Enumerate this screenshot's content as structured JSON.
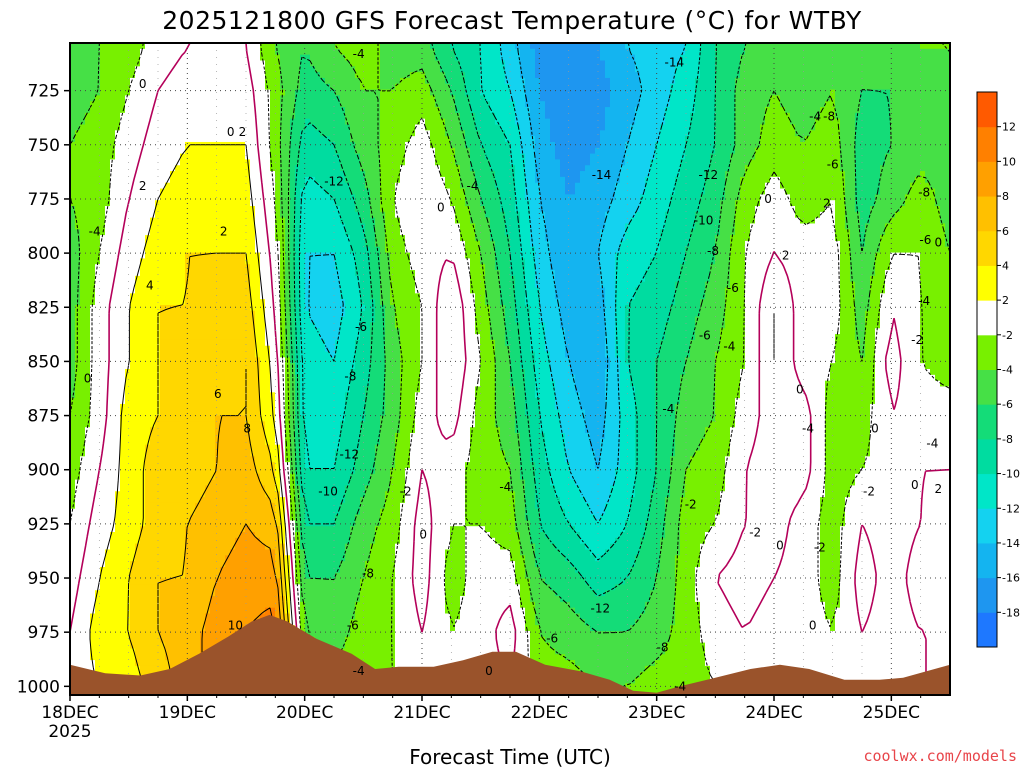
{
  "chart_data": {
    "type": "heatmap",
    "title": "2025121800 GFS Forecast Temperature (°C) for WTBY",
    "xlabel": "Forecast Time (UTC)",
    "ylabel": "",
    "y_unit": "hPa",
    "y_ticks": [
      725,
      750,
      775,
      800,
      825,
      850,
      875,
      900,
      925,
      950,
      975,
      1000
    ],
    "ylim": [
      1004,
      703
    ],
    "x_ticks": [
      "18DEC",
      "19DEC",
      "20DEC",
      "21DEC",
      "22DEC",
      "23DEC",
      "24DEC",
      "25DEC"
    ],
    "x_year": "2025",
    "xlim_days": [
      18,
      25.5
    ],
    "grid": true,
    "colorbar": {
      "bounds": [
        -20,
        -18,
        -16,
        -14,
        -12,
        -10,
        -8,
        -6,
        -4,
        -2,
        2,
        4,
        6,
        8,
        10,
        12,
        14
      ],
      "tick_labels": [
        "-18",
        "-16",
        "-14",
        "-12",
        "-10",
        "-8",
        "-6",
        "-4",
        "-2",
        "2",
        "4",
        "6",
        "8",
        "10",
        "12"
      ],
      "colors": [
        "#1e78ff",
        "#1e96f0",
        "#14b4f0",
        "#14d2f0",
        "#00e6c8",
        "#00dca0",
        "#14dc78",
        "#46e046",
        "#78f000",
        "#ffffff",
        "#ffff00",
        "#ffd700",
        "#ffc000",
        "#ffa000",
        "#ff8000",
        "#ff5a00"
      ]
    },
    "terrain": {
      "color": "#9a532b",
      "surface_pressure": [
        [
          18.0,
          990
        ],
        [
          18.3,
          994
        ],
        [
          18.6,
          995
        ],
        [
          18.85,
          992
        ],
        [
          19.1,
          985
        ],
        [
          19.35,
          977
        ],
        [
          19.55,
          970
        ],
        [
          19.7,
          967
        ],
        [
          19.85,
          970
        ],
        [
          20.1,
          978
        ],
        [
          20.4,
          985
        ],
        [
          20.6,
          992
        ],
        [
          20.8,
          991
        ],
        [
          21.1,
          991
        ],
        [
          21.35,
          988
        ],
        [
          21.6,
          984
        ],
        [
          21.8,
          984
        ],
        [
          22.05,
          990
        ],
        [
          22.35,
          993
        ],
        [
          22.6,
          997
        ],
        [
          22.8,
          1002
        ],
        [
          23.0,
          1003
        ],
        [
          23.2,
          1000
        ],
        [
          23.5,
          996
        ],
        [
          23.8,
          992
        ],
        [
          24.05,
          990
        ],
        [
          24.3,
          992
        ],
        [
          24.6,
          997
        ],
        [
          24.9,
          997
        ],
        [
          25.1,
          996
        ],
        [
          25.3,
          993
        ],
        [
          25.5,
          990
        ]
      ]
    },
    "grid_times_days": [
      18.0,
      18.25,
      18.5,
      18.75,
      19.0,
      19.25,
      19.5,
      19.75,
      20.0,
      20.25,
      20.5,
      20.75,
      21.0,
      21.25,
      21.5,
      21.75,
      22.0,
      22.25,
      22.5,
      22.75,
      23.0,
      23.25,
      23.5,
      23.75,
      24.0,
      24.25,
      24.5,
      24.75,
      25.0,
      25.25,
      25.5
    ],
    "grid_pressure_hpa": [
      1000,
      975,
      950,
      925,
      900,
      875,
      850,
      825,
      800,
      775,
      750,
      725,
      705
    ],
    "temperature_c_by_time": [
      [
        1,
        0,
        -1,
        -2,
        -3,
        -4,
        -5,
        -5,
        -5,
        -4,
        -4,
        -5,
        -5
      ],
      [
        2,
        3,
        2,
        1,
        0,
        -1,
        -1,
        -1,
        -2,
        -3,
        -3,
        -4,
        -4
      ],
      [
        3,
        4,
        4,
        3,
        3,
        3,
        2,
        2,
        1,
        0,
        -1,
        -2,
        -3
      ],
      [
        5,
        6,
        6,
        5,
        5,
        4,
        4,
        4,
        3,
        2,
        1,
        0,
        -1
      ],
      [
        7,
        7,
        6,
        6,
        5,
        5,
        5,
        4,
        4,
        3,
        2,
        1,
        0
      ],
      [
        9,
        9,
        8,
        7,
        6,
        6,
        5,
        5,
        4,
        3,
        2,
        1,
        0
      ],
      [
        11,
        10,
        9,
        8,
        7,
        6,
        6,
        5,
        4,
        3,
        2,
        1,
        0
      ],
      [
        11,
        11,
        9,
        7,
        4,
        2,
        1,
        0,
        -1,
        -2,
        -3,
        -3,
        -4
      ],
      [
        -2,
        -4,
        -6,
        -8,
        -10,
        -11,
        -11,
        -12,
        -12,
        -11,
        -9,
        -7,
        -6
      ],
      [
        -3,
        -5,
        -6,
        -8,
        -10,
        -11,
        -12,
        -13,
        -12,
        -10,
        -8,
        -6,
        -4
      ],
      [
        -3,
        -3,
        -4,
        -5,
        -7,
        -8,
        -9,
        -10,
        -9,
        -7,
        -5,
        -4,
        -3
      ],
      [
        -2,
        -2,
        -2,
        -3,
        -4,
        -5,
        -5,
        -4,
        -3,
        -2,
        -3,
        -4,
        -5
      ],
      [
        -1,
        0,
        1,
        1,
        0,
        -1,
        -2,
        -2,
        -1,
        0,
        -1,
        -3,
        -5
      ],
      [
        -1,
        -2,
        -3,
        -2,
        -1,
        1,
        2,
        2,
        0,
        -2,
        -4,
        -6,
        -8
      ],
      [
        -1,
        -1,
        -1,
        -2,
        -3,
        -3,
        -2,
        -3,
        -4,
        -6,
        -8,
        -10,
        -10
      ],
      [
        0,
        1,
        -1,
        -3,
        -4,
        -5,
        -6,
        -7,
        -8,
        -9,
        -10,
        -12,
        -13
      ],
      [
        -3,
        -4,
        -6,
        -8,
        -9,
        -10,
        -11,
        -12,
        -13,
        -14,
        -15,
        -16,
        -17
      ],
      [
        -3,
        -5,
        -7,
        -10,
        -12,
        -13,
        -14,
        -15,
        -16,
        -16,
        -17,
        -18,
        -18
      ],
      [
        -4,
        -6,
        -9,
        -12,
        -14,
        -15,
        -16,
        -15,
        -14,
        -15,
        -16,
        -17,
        -16
      ],
      [
        -4,
        -6,
        -8,
        -10,
        -11,
        -11,
        -10,
        -10,
        -11,
        -13,
        -14,
        -15,
        -14
      ],
      [
        -3,
        -5,
        -6,
        -7,
        -8,
        -8,
        -8,
        -9,
        -10,
        -11,
        -12,
        -13,
        -13
      ],
      [
        -3,
        -3,
        -3,
        -3,
        -4,
        -5,
        -6,
        -7,
        -8,
        -9,
        -10,
        -11,
        -12
      ],
      [
        -2,
        -1,
        0,
        -2,
        -3,
        -4,
        -4,
        -5,
        -6,
        -7,
        -8,
        -8,
        -8
      ],
      [
        -2,
        0,
        1,
        0,
        0,
        -1,
        -2,
        -2,
        -2,
        -3,
        -5,
        -5,
        -6
      ],
      [
        -2,
        -1,
        0,
        1,
        1,
        1,
        2,
        2,
        0,
        -1,
        -3,
        -4,
        -5
      ],
      [
        -1,
        -1,
        -1,
        -1,
        1,
        1,
        -1,
        -1,
        -1,
        -3,
        -4,
        -5,
        -5
      ],
      [
        -1,
        -2,
        -3,
        -3,
        -3,
        -3,
        -2,
        -1,
        -1,
        -2,
        -3,
        -4,
        -5
      ],
      [
        -1,
        0,
        1,
        0,
        -2,
        -3,
        -4,
        -5,
        -6,
        -7,
        -7,
        -6,
        -6
      ],
      [
        -1,
        -1,
        -1,
        -1,
        -1,
        0,
        1,
        0,
        -2,
        -5,
        -6,
        -6,
        -5
      ],
      [
        0,
        0,
        1,
        0,
        0,
        -1,
        -2,
        -2,
        -2,
        -3,
        -5,
        -5,
        -4
      ],
      [
        0,
        0,
        1,
        1,
        0,
        -1,
        -3,
        -3,
        -4,
        -5,
        -5,
        -4,
        -4
      ]
    ],
    "contour_levels": [
      -14,
      -12,
      -10,
      -8,
      -6,
      -4,
      -2,
      0,
      2,
      4,
      6,
      8,
      10
    ],
    "contour_styles": {
      "negative": {
        "color": "#000000",
        "dash": "3,2"
      },
      "zero": {
        "color": "#b4005a",
        "dash": ""
      },
      "positive": {
        "color": "#000000",
        "dash": ""
      }
    },
    "contour_labels": [
      {
        "day": 18.62,
        "p": 722,
        "text": "0"
      },
      {
        "day": 19.37,
        "p": 744,
        "text": "0"
      },
      {
        "day": 19.47,
        "p": 744,
        "text": "2"
      },
      {
        "day": 18.62,
        "p": 769,
        "text": "2"
      },
      {
        "day": 18.21,
        "p": 790,
        "text": "-4"
      },
      {
        "day": 19.31,
        "p": 790,
        "text": "2"
      },
      {
        "day": 18.68,
        "p": 815,
        "text": "4"
      },
      {
        "day": 18.15,
        "p": 858,
        "text": "0"
      },
      {
        "day": 19.26,
        "p": 865,
        "text": "6"
      },
      {
        "day": 19.51,
        "p": 881,
        "text": "8"
      },
      {
        "day": 19.41,
        "p": 972,
        "text": "10"
      },
      {
        "day": 20.46,
        "p": 708,
        "text": "-4"
      },
      {
        "day": 20.25,
        "p": 767,
        "text": "-12"
      },
      {
        "day": 20.48,
        "p": 834,
        "text": "-6"
      },
      {
        "day": 20.39,
        "p": 857,
        "text": "-8"
      },
      {
        "day": 20.38,
        "p": 893,
        "text": "-12"
      },
      {
        "day": 20.2,
        "p": 910,
        "text": "-10"
      },
      {
        "day": 20.54,
        "p": 948,
        "text": "-8"
      },
      {
        "day": 20.41,
        "p": 972,
        "text": "-6"
      },
      {
        "day": 20.46,
        "p": 993,
        "text": "-4"
      },
      {
        "day": 21.16,
        "p": 779,
        "text": "0"
      },
      {
        "day": 21.43,
        "p": 769,
        "text": "-4"
      },
      {
        "day": 20.86,
        "p": 910,
        "text": "-2"
      },
      {
        "day": 21.01,
        "p": 930,
        "text": "0"
      },
      {
        "day": 21.71,
        "p": 908,
        "text": "-4"
      },
      {
        "day": 21.57,
        "p": 993,
        "text": "0"
      },
      {
        "day": 22.11,
        "p": 978,
        "text": "-6"
      },
      {
        "day": 22.52,
        "p": 964,
        "text": "-12"
      },
      {
        "day": 22.53,
        "p": 764,
        "text": "-14"
      },
      {
        "day": 23.15,
        "p": 712,
        "text": "-14"
      },
      {
        "day": 23.44,
        "p": 764,
        "text": "-12"
      },
      {
        "day": 23.4,
        "p": 785,
        "text": "-10"
      },
      {
        "day": 23.48,
        "p": 799,
        "text": "-8"
      },
      {
        "day": 23.65,
        "p": 816,
        "text": "-6"
      },
      {
        "day": 23.41,
        "p": 838,
        "text": "-6"
      },
      {
        "day": 23.62,
        "p": 843,
        "text": "-4"
      },
      {
        "day": 23.1,
        "p": 872,
        "text": "-4"
      },
      {
        "day": 23.05,
        "p": 982,
        "text": "-8"
      },
      {
        "day": 23.2,
        "p": 1000,
        "text": "-4"
      },
      {
        "day": 23.29,
        "p": 916,
        "text": "-2"
      },
      {
        "day": 23.84,
        "p": 929,
        "text": "-2"
      },
      {
        "day": 23.95,
        "p": 775,
        "text": "0"
      },
      {
        "day": 24.1,
        "p": 801,
        "text": "2"
      },
      {
        "day": 24.22,
        "p": 863,
        "text": "0"
      },
      {
        "day": 24.29,
        "p": 881,
        "text": "-4"
      },
      {
        "day": 24.05,
        "p": 935,
        "text": "0"
      },
      {
        "day": 24.39,
        "p": 936,
        "text": "-2"
      },
      {
        "day": 24.33,
        "p": 972,
        "text": "0"
      },
      {
        "day": 24.81,
        "p": 910,
        "text": "-2"
      },
      {
        "day": 24.86,
        "p": 881,
        "text": "0"
      },
      {
        "day": 24.35,
        "p": 737,
        "text": "-4"
      },
      {
        "day": 24.47,
        "p": 737,
        "text": "-8"
      },
      {
        "day": 24.5,
        "p": 759,
        "text": "-6"
      },
      {
        "day": 24.45,
        "p": 777,
        "text": "2"
      },
      {
        "day": 25.28,
        "p": 772,
        "text": "-8"
      },
      {
        "day": 25.29,
        "p": 794,
        "text": "-6"
      },
      {
        "day": 25.4,
        "p": 795,
        "text": "0"
      },
      {
        "day": 25.28,
        "p": 822,
        "text": "-4"
      },
      {
        "day": 25.22,
        "p": 840,
        "text": "-2"
      },
      {
        "day": 25.35,
        "p": 888,
        "text": "-4"
      },
      {
        "day": 25.2,
        "p": 907,
        "text": "0"
      },
      {
        "day": 25.4,
        "p": 909,
        "text": "2"
      }
    ]
  },
  "credit": "coolwx.com/models"
}
